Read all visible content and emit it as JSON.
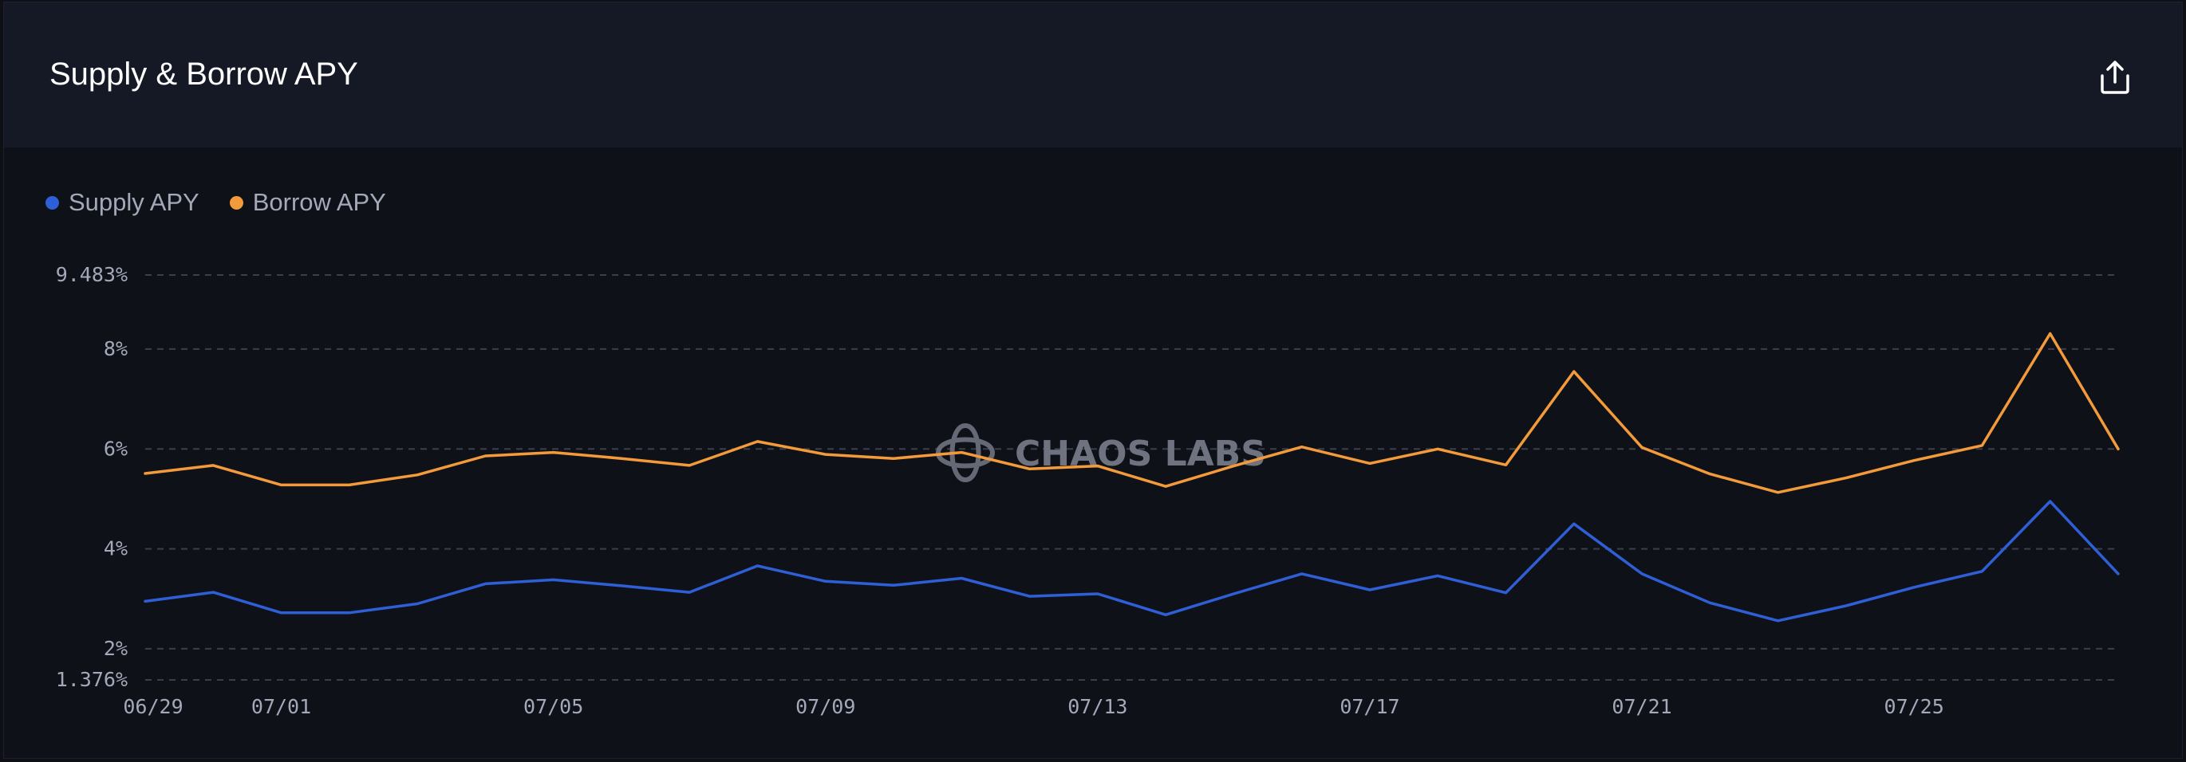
{
  "header": {
    "title": "Supply & Borrow APY",
    "export_icon": "share-upload-icon"
  },
  "watermark": "CHAOS LABS",
  "colors": {
    "supply": "#2f5fd6",
    "borrow": "#f39a3a",
    "grid": "#3a3f4c"
  },
  "chart_data": {
    "type": "line",
    "title": "Supply & Borrow APY",
    "xlabel": "",
    "ylabel": "",
    "legend": "top-left",
    "grid": true,
    "ylim": [
      1.376,
      9.483
    ],
    "y_ticks": [
      "9.483%",
      "8%",
      "6%",
      "4%",
      "2%",
      "1.376%"
    ],
    "x_ticks": [
      "06/29",
      "07/01",
      "07/05",
      "07/09",
      "07/13",
      "07/17",
      "07/21",
      "07/25"
    ],
    "x": [
      "06/29",
      "06/30",
      "07/01",
      "07/02",
      "07/03",
      "07/04",
      "07/05",
      "07/06",
      "07/07",
      "07/08",
      "07/09",
      "07/10",
      "07/11",
      "07/12",
      "07/13",
      "07/14",
      "07/15",
      "07/16",
      "07/17",
      "07/18",
      "07/19",
      "07/20",
      "07/21",
      "07/22",
      "07/23",
      "07/24",
      "07/25",
      "07/26",
      "07/27",
      "07/28"
    ],
    "series": [
      {
        "name": "Supply APY",
        "color": "#2f5fd6",
        "values": [
          2.95,
          3.13,
          2.72,
          2.72,
          2.9,
          3.3,
          3.38,
          3.26,
          3.13,
          3.66,
          3.35,
          3.27,
          3.41,
          3.05,
          3.1,
          2.68,
          3.1,
          3.5,
          3.18,
          3.46,
          3.12,
          4.5,
          3.5,
          2.92,
          2.56,
          2.86,
          3.23,
          3.55,
          4.95,
          3.5
        ]
      },
      {
        "name": "Borrow APY",
        "color": "#f39a3a",
        "values": [
          5.51,
          5.67,
          5.28,
          5.28,
          5.48,
          5.86,
          5.93,
          5.81,
          5.67,
          6.15,
          5.89,
          5.81,
          5.93,
          5.6,
          5.66,
          5.25,
          5.66,
          6.04,
          5.71,
          6.0,
          5.68,
          7.55,
          6.03,
          5.5,
          5.13,
          5.42,
          5.77,
          6.07,
          8.31,
          6.0
        ]
      }
    ]
  }
}
